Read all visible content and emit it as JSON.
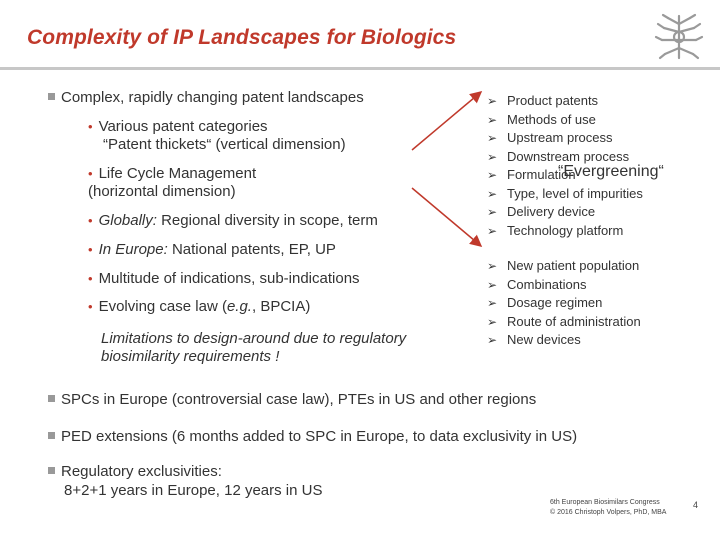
{
  "title": "Complexity of IP Landscapes for Biologics",
  "logo_icon": "dna-molecule-icon",
  "colors": {
    "title": "#c0392b",
    "bullet_dot": "#c0392b",
    "arrow": "#c0392b"
  },
  "main": {
    "bullet1": "Complex, rapidly changing patent landscapes",
    "sub1": "Various patent categories",
    "sub1_cont": "“Patent thickets“ (vertical dimension)",
    "sub2": "Life Cycle Management",
    "sub2_cont": "(horizontal dimension)",
    "sub3_em": "Globally:",
    "sub3_rest": " Regional diversity in scope, term",
    "sub4_em": "In Europe:",
    "sub4_rest": " National patents, EP, UP",
    "sub5": "Multitude of indications, sub-indications",
    "sub6_a": "Evolving case law (",
    "sub6_em": "e.g.",
    "sub6_b": ", BPCIA)",
    "limit1": "Limitations to design-around due to regulatory",
    "limit2": "biosimilarity requirements !"
  },
  "right": {
    "group1": [
      "Product patents",
      "Methods of use",
      "Upstream process",
      "Downstream process",
      "Formulation",
      "Type, level of impurities",
      "Delivery device",
      "Technology platform"
    ],
    "evergreening": "“Evergreening“",
    "group2": [
      "New patient population",
      "Combinations",
      "Dosage regimen",
      "Route of administration",
      "New devices"
    ]
  },
  "bottom": {
    "spc": "SPCs in Europe (controversial case law), PTEs in US and other regions",
    "ped": "PED extensions (6 months added to SPC in Europe, to data exclusivity in US)",
    "reg1": "Regulatory exclusivities:",
    "reg2": "8+2+1 years in Europe, 12 years in US"
  },
  "footer": {
    "line1": "6th European Biosimilars Congress",
    "line2": "© 2016 Christoph Volpers, PhD, MBA",
    "page": "4"
  }
}
